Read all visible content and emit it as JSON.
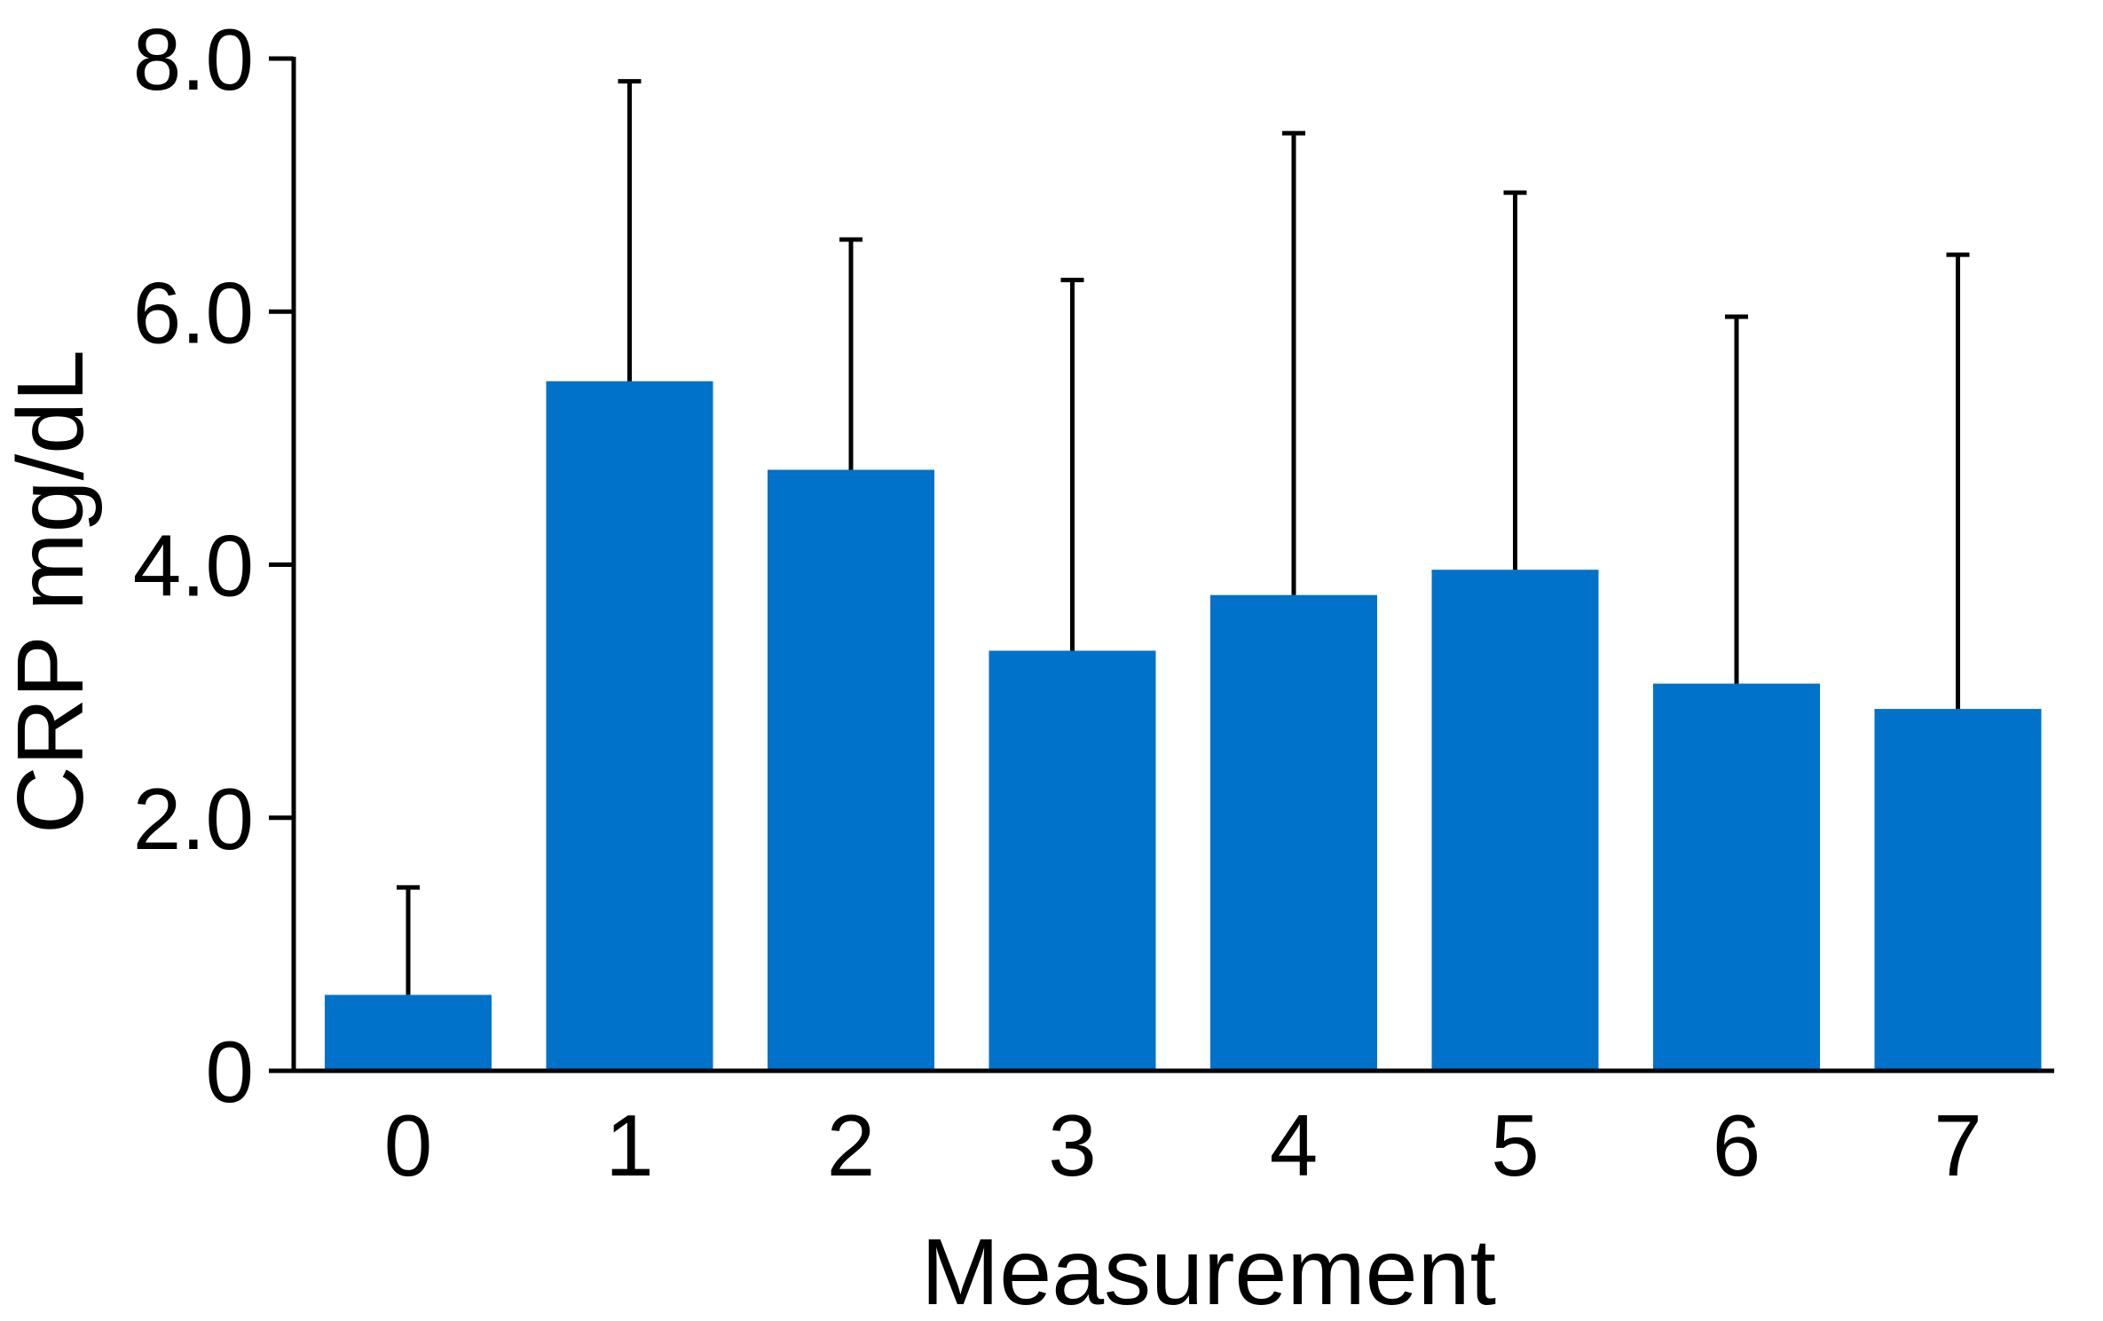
{
  "chart_data": {
    "type": "bar",
    "title": "",
    "xlabel": "Measurement",
    "ylabel": "CRP mg/dL",
    "categories": [
      "0",
      "1",
      "2",
      "3",
      "4",
      "5",
      "6",
      "7"
    ],
    "values": [
      0.6,
      5.45,
      4.75,
      3.32,
      3.76,
      3.96,
      3.06,
      2.86
    ],
    "error_upper": [
      1.45,
      7.82,
      6.57,
      6.25,
      7.41,
      6.94,
      5.96,
      6.45
    ],
    "ylim": [
      0,
      8
    ],
    "yticks": [
      {
        "value": 0,
        "label": "0"
      },
      {
        "value": 2,
        "label": "2.0"
      },
      {
        "value": 4,
        "label": "4.0"
      },
      {
        "value": 6,
        "label": "6.0"
      },
      {
        "value": 8,
        "label": "8.0"
      }
    ],
    "grid": false,
    "legend": "none",
    "bar_color": "#0072C9",
    "axis_color": "#000000"
  }
}
